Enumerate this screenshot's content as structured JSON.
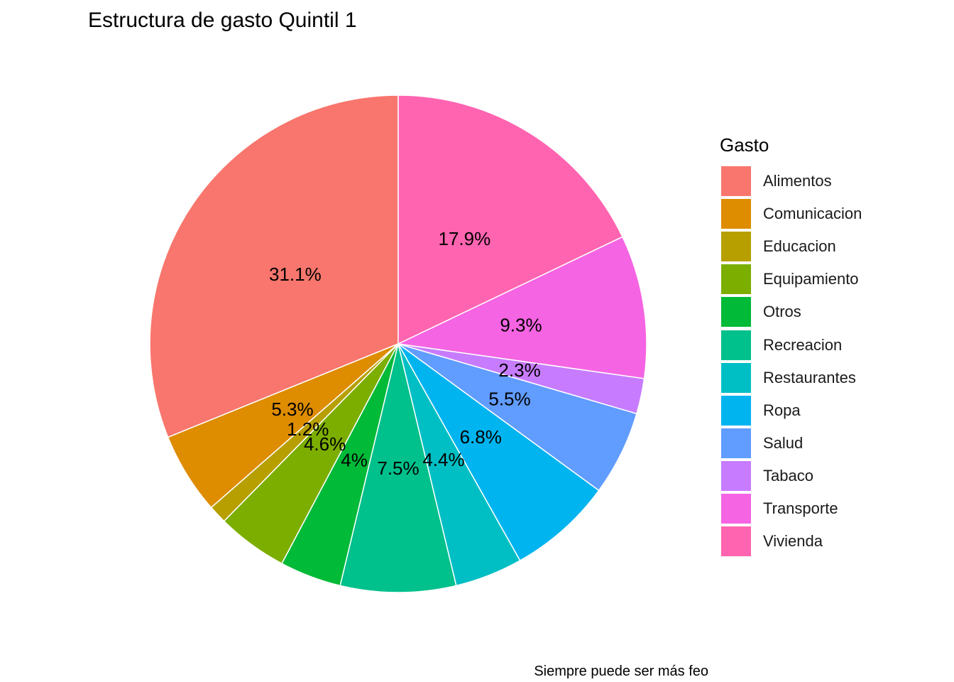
{
  "chart_data": {
    "type": "pie",
    "title": "Estructura de gasto Quintil 1",
    "caption": "Siempre puede ser más feo",
    "legend_title": "Gasto",
    "legend_position": "right",
    "start": "top",
    "direction": "counterclockwise",
    "slices": [
      {
        "name": "Alimentos",
        "value": 31.1,
        "label": "31.1%",
        "color": "#F8766D"
      },
      {
        "name": "Comunicacion",
        "value": 5.3,
        "label": "5.3%",
        "color": "#DE8C00"
      },
      {
        "name": "Educacion",
        "value": 1.2,
        "label": "1.2%",
        "color": "#B79F00"
      },
      {
        "name": "Equipamiento",
        "value": 4.6,
        "label": "4.6%",
        "color": "#7CAE00"
      },
      {
        "name": "Otros",
        "value": 4.0,
        "label": "4%",
        "color": "#00BA38"
      },
      {
        "name": "Recreacion",
        "value": 7.5,
        "label": "7.5%",
        "color": "#00C08B"
      },
      {
        "name": "Restaurantes",
        "value": 4.4,
        "label": "4.4%",
        "color": "#00BFC4"
      },
      {
        "name": "Ropa",
        "value": 6.8,
        "label": "6.8%",
        "color": "#00B4F0"
      },
      {
        "name": "Salud",
        "value": 5.5,
        "label": "5.5%",
        "color": "#619CFF"
      },
      {
        "name": "Tabaco",
        "value": 2.3,
        "label": "2.3%",
        "color": "#C77CFF"
      },
      {
        "name": "Transporte",
        "value": 9.3,
        "label": "9.3%",
        "color": "#F564E3"
      },
      {
        "name": "Vivienda",
        "value": 17.9,
        "label": "17.9%",
        "color": "#FF64B0"
      }
    ]
  }
}
